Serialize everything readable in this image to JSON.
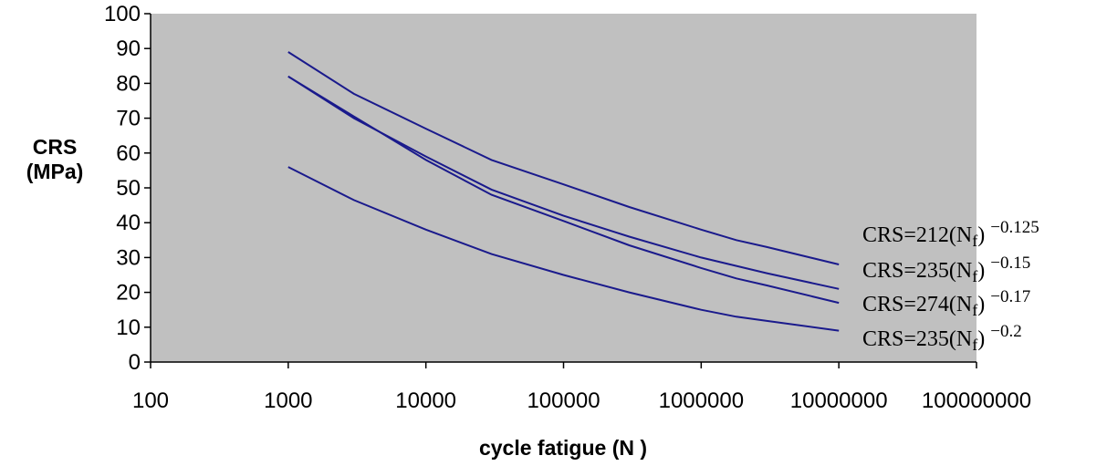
{
  "chart_data": {
    "type": "line",
    "xscale": "log",
    "xlim": [
      100,
      100000000
    ],
    "ylim": [
      0,
      100
    ],
    "xticks": [
      "100",
      "1000",
      "10000",
      "100000",
      "1000000",
      "10000000",
      "100000000"
    ],
    "yticks": [
      "0",
      "10",
      "20",
      "30",
      "40",
      "50",
      "60",
      "70",
      "80",
      "90",
      "100"
    ],
    "xlabel": "cycle fatigue (N )",
    "ylabel_line1": "CRS",
    "ylabel_line2": "(MPa)",
    "grid": false,
    "plot_background": "#c0c0c0",
    "series_color": "#1a1a8c",
    "series": [
      {
        "name": "CRS=212(Nf) -0.125",
        "label_main": "CRS=212(N",
        "label_sub": "f",
        "label_close": ")",
        "label_exp": "−0.125",
        "x": [
          1000,
          3000,
          10000,
          30000,
          100000,
          300000,
          1000000,
          1800000,
          3000000,
          10000000
        ],
        "y": [
          89,
          77,
          67,
          58,
          51,
          44.5,
          38,
          35,
          33,
          28
        ]
      },
      {
        "name": "CRS=235(Nf) -0.15",
        "label_main": "CRS=235(N",
        "label_sub": "f",
        "label_close": ")",
        "label_exp": "−0.15",
        "x": [
          1000,
          3000,
          10000,
          30000,
          100000,
          300000,
          1000000,
          3000000,
          10000000
        ],
        "y": [
          82,
          70,
          59,
          49.5,
          42,
          36,
          30,
          25.5,
          21
        ]
      },
      {
        "name": "CRS=274(Nf) -0.17",
        "label_main": "CRS=274(N",
        "label_sub": "f",
        "label_close": ")",
        "label_exp": "−0.17",
        "x": [
          1000,
          3000,
          10000,
          30000,
          100000,
          300000,
          1000000,
          1800000,
          3000000,
          10000000
        ],
        "y": [
          82,
          70.5,
          58,
          48,
          40.5,
          33.5,
          27,
          24,
          22,
          17
        ]
      },
      {
        "name": "CRS=235(Nf) -0.2",
        "label_main": "CRS=235(N",
        "label_sub": "f",
        "label_close": ")",
        "label_exp": "−0.2",
        "x": [
          1000,
          3000,
          10000,
          30000,
          100000,
          300000,
          1000000,
          1800000,
          3000000,
          10000000
        ],
        "y": [
          56,
          46.5,
          38,
          31,
          25,
          20,
          15,
          13,
          11.8,
          9
        ]
      }
    ]
  }
}
